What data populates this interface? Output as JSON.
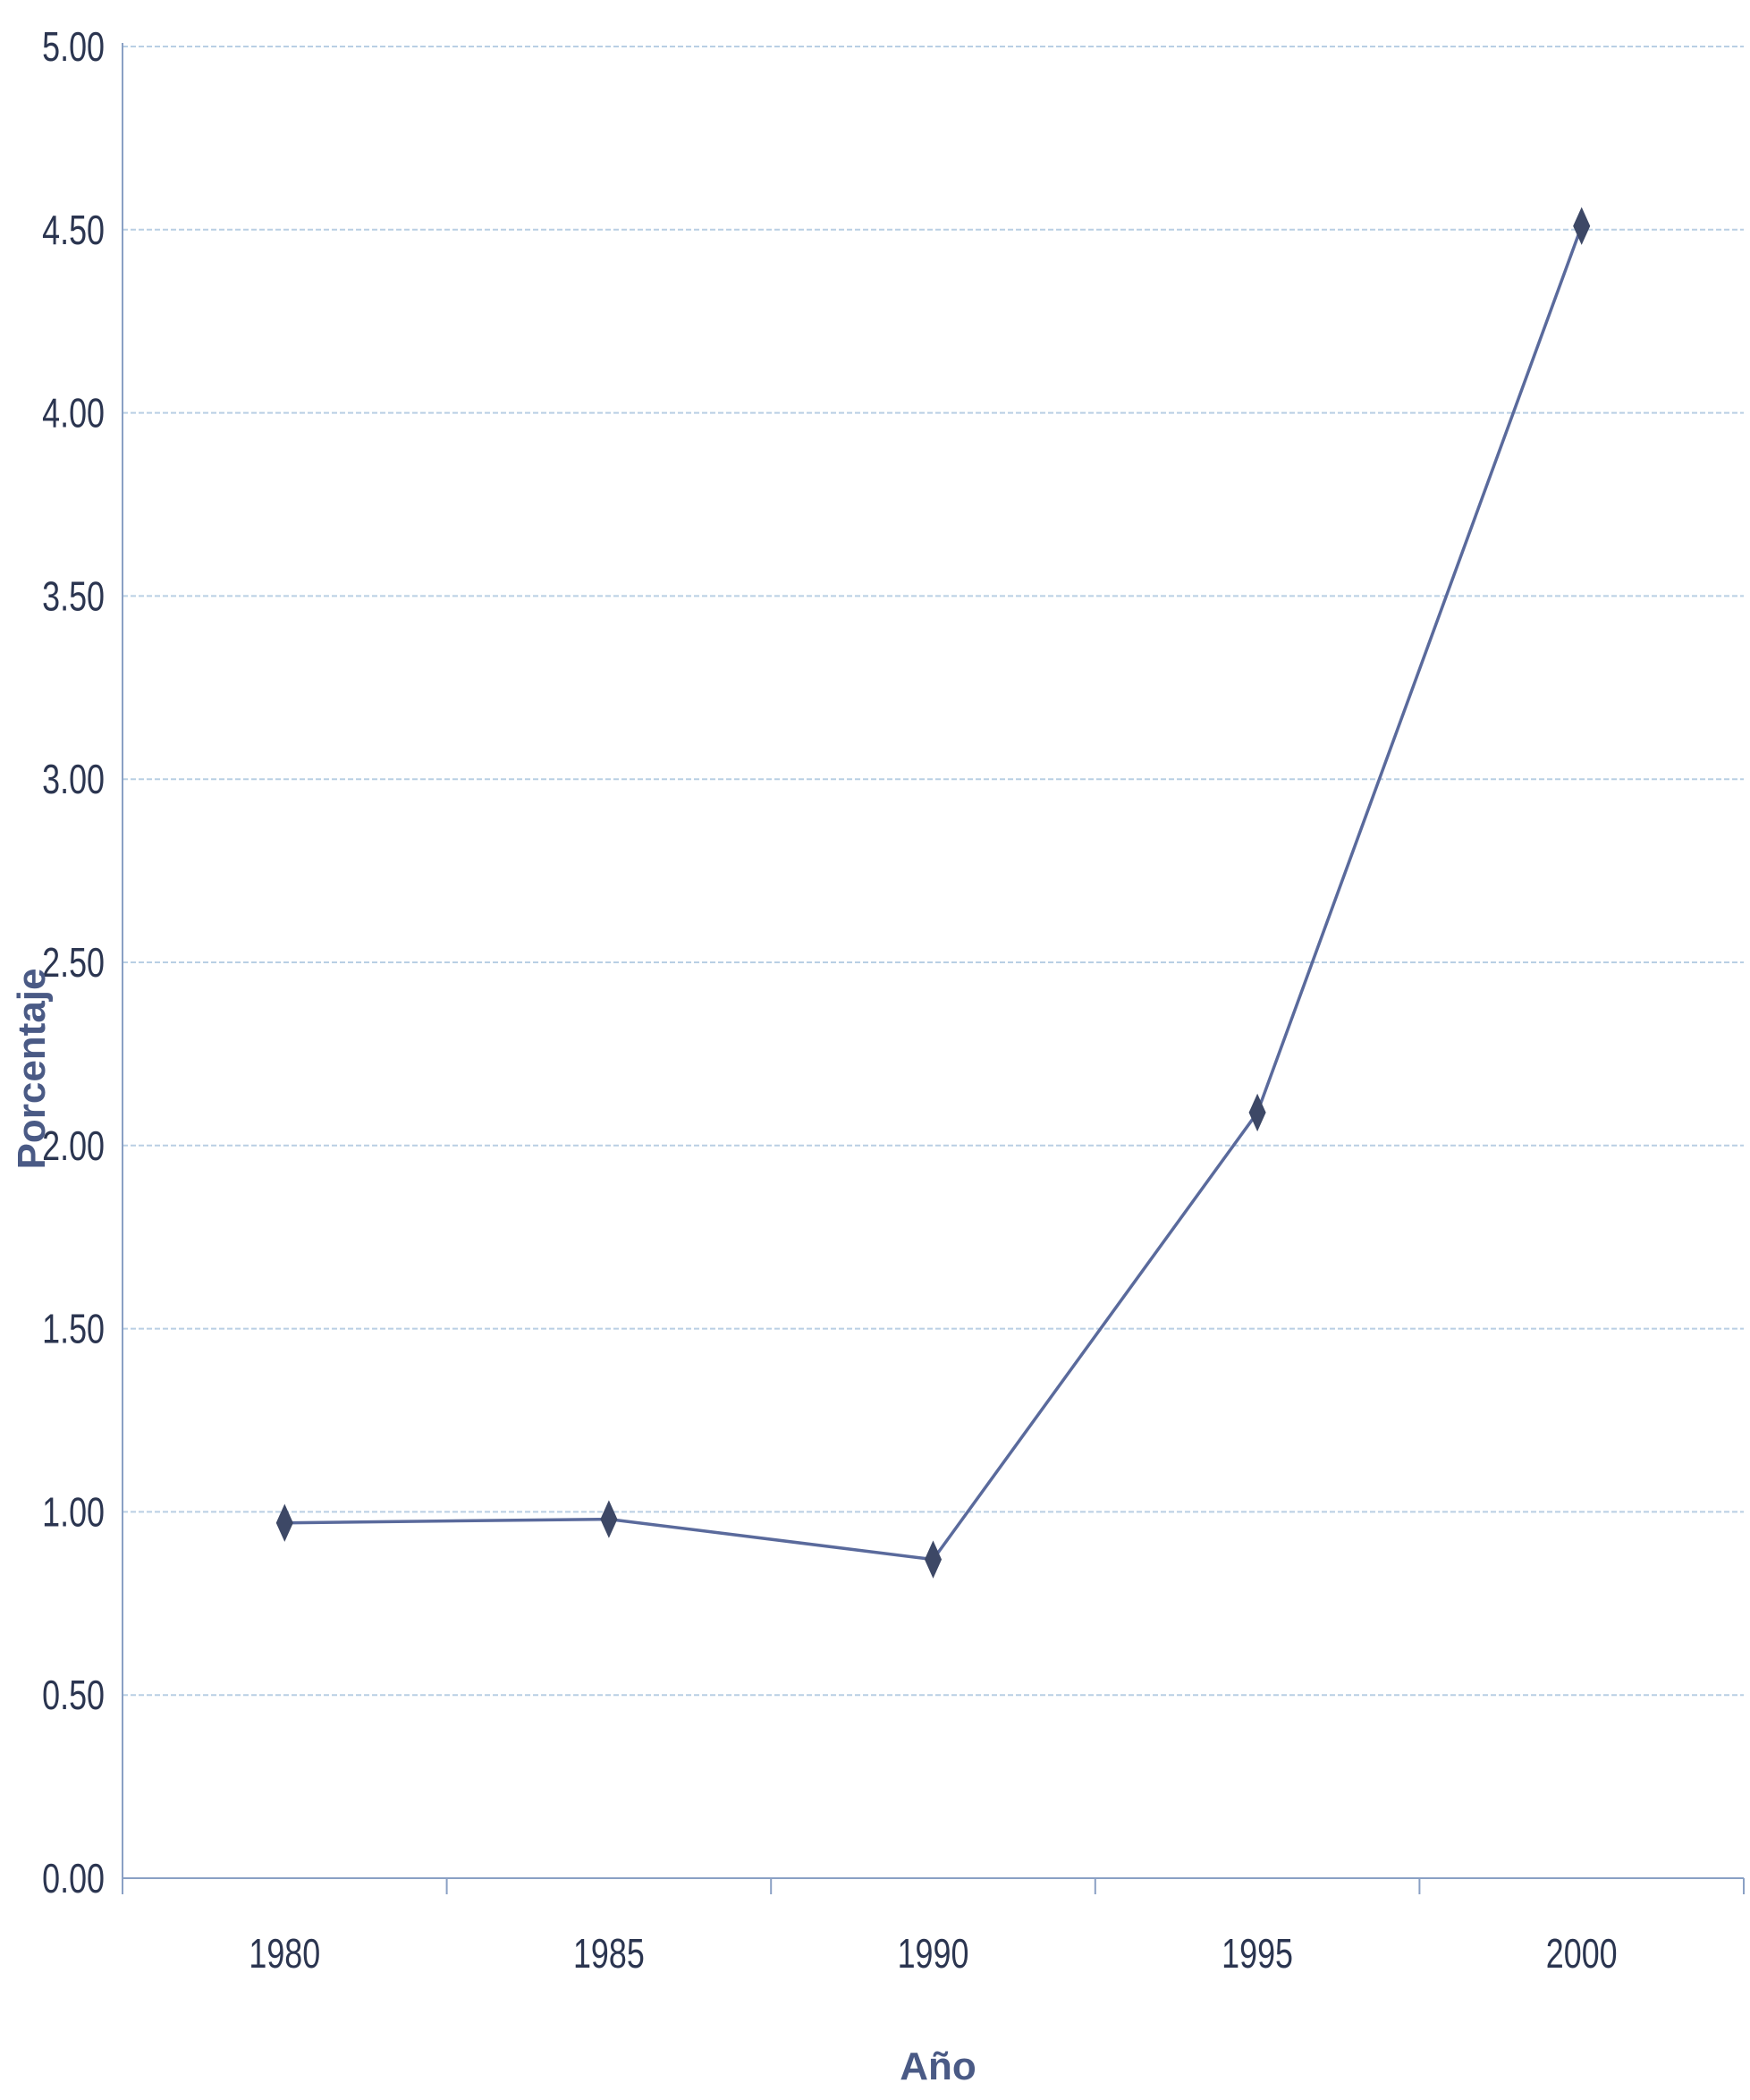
{
  "chart_data": {
    "type": "line",
    "title": "",
    "xlabel": "Año",
    "ylabel": "Porcentaje",
    "categories": [
      "1980",
      "1985",
      "1990",
      "1995",
      "2000"
    ],
    "series": [
      {
        "values": [
          0.97,
          0.98,
          0.87,
          2.09,
          4.51
        ]
      }
    ],
    "ylim": [
      0,
      5
    ],
    "yticks": [
      "0.00",
      "0.50",
      "1.00",
      "1.50",
      "2.00",
      "2.50",
      "3.00",
      "3.50",
      "4.00",
      "4.50",
      "5.00"
    ],
    "grid": true,
    "legend": "none",
    "colors": {
      "line": "#5a6a9c",
      "marker": "#3d4866",
      "grid": "#b9cfe4",
      "axis": "#8aa0c4",
      "text": "#2b3550",
      "axis_title": "#4a5a85"
    }
  }
}
